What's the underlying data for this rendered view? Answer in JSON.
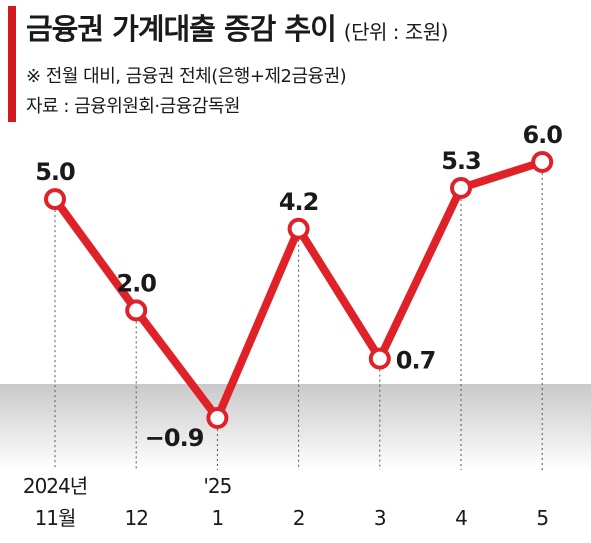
{
  "header": {
    "title": "금융권 가계대출 증감 추이",
    "unit": "(단위 : 조원)",
    "note": "※ 전월 대비, 금융권 전체(은행+제2금융권)",
    "source": "자료 : 금융위원회·금융감독원"
  },
  "colors": {
    "accent": "#d4161f",
    "line": "#e02127",
    "negative_zone_top": "#c9c9c9",
    "negative_zone_bottom": "#ffffff"
  },
  "chart_data": {
    "type": "line",
    "title": "금융권 가계대출 증감 추이",
    "unit": "조원",
    "categories": [
      "2024년 11월",
      "12",
      "'25 1",
      "2",
      "3",
      "4",
      "5"
    ],
    "category_lines": [
      [
        "2024년",
        "11월"
      ],
      [
        "12"
      ],
      [
        "'25",
        "1"
      ],
      [
        "2"
      ],
      [
        "3"
      ],
      [
        "4"
      ],
      [
        "5"
      ]
    ],
    "values": [
      5.0,
      2.0,
      -0.9,
      4.2,
      0.7,
      5.3,
      6.0
    ],
    "value_labels": [
      "5.0",
      "2.0",
      "−0.9",
      "4.2",
      "0.7",
      "5.3",
      "6.0"
    ],
    "label_side": [
      "above",
      "above",
      "left",
      "above",
      "right",
      "above",
      "above"
    ],
    "ylim": [
      -1.5,
      6.5
    ],
    "negative_region_shaded": true,
    "grid": false,
    "legend": "none"
  }
}
